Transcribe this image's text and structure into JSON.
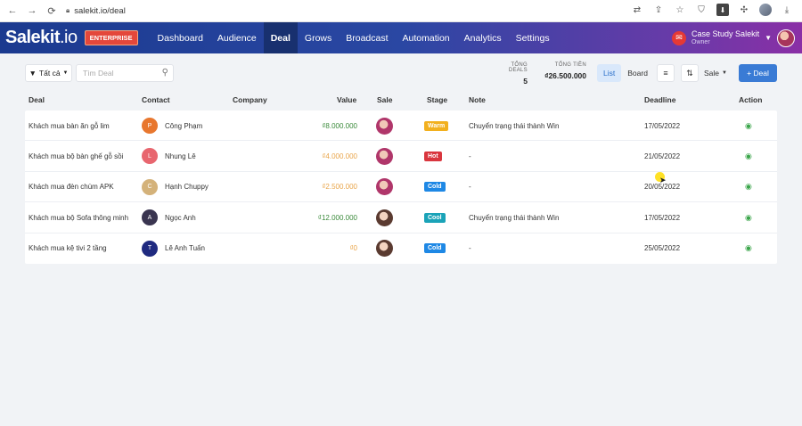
{
  "browser": {
    "url": "salekit.io/deal"
  },
  "app": {
    "logo": "Salekit",
    "logo_suffix": ".io",
    "plan_badge": "ENTERPRISE",
    "menu": [
      "Dashboard",
      "Audience",
      "Deal",
      "Grows",
      "Broadcast",
      "Automation",
      "Analytics",
      "Settings"
    ],
    "active_menu": "Deal",
    "account": {
      "name": "Case Study Salekit",
      "role": "Owner"
    }
  },
  "toolbar": {
    "filter_label": "Tất cả",
    "search_placeholder": "Tìm Deal",
    "total_deals_label": "TỔNG DEALS",
    "total_deals_value": "5",
    "total_value_label": "TỔNG TIỀN",
    "total_value_value": "₫26.500.000",
    "view_list": "List",
    "view_board": "Board",
    "sale_filter": "Sale",
    "add_deal": "+ Deal"
  },
  "table": {
    "columns": [
      "Deal",
      "Contact",
      "Company",
      "Value",
      "Sale",
      "Stage",
      "Note",
      "Deadline",
      "Action"
    ],
    "rows": [
      {
        "deal": "Khách mua bàn ăn gỗ lim",
        "contact": "Công Phạm",
        "initial": "P",
        "avatar_color": "#e8772e",
        "company": "",
        "value": "₫8.000.000",
        "value_color": "#3a8a3a",
        "stage": "Warm",
        "stage_color": "#f2b01e",
        "note": "Chuyển trạng thái thành Win",
        "deadline": "17/05/2022"
      },
      {
        "deal": "Khách mua bộ bàn ghế gỗ sồi",
        "contact": "Nhung Lê",
        "initial": "L",
        "avatar_color": "#e8666f",
        "company": "",
        "value": "₫4.000.000",
        "value_color": "#e9a54a",
        "stage": "Hot",
        "stage_color": "#d9363e",
        "note": "-",
        "deadline": "21/05/2022"
      },
      {
        "deal": "Khách mua đèn chùm APK",
        "contact": "Hạnh Chuppy",
        "initial": "C",
        "avatar_color": "#d4b27a",
        "company": "",
        "value": "₫2.500.000",
        "value_color": "#e9a54a",
        "stage": "Cold",
        "stage_color": "#1e88e5",
        "note": "-",
        "deadline": "20/05/2022"
      },
      {
        "deal": "Khách mua bộ Sofa thông minh",
        "contact": "Ngọc Anh",
        "initial": "A",
        "avatar_color": "#3a3550",
        "company": "",
        "value": "₫12.000.000",
        "value_color": "#3a8a3a",
        "stage": "Cool",
        "stage_color": "#1aa3b8",
        "note": "Chuyển trạng thái thành Win",
        "deadline": "17/05/2022"
      },
      {
        "deal": "Khách mua kệ tivi 2 tầng",
        "contact": "Lê Anh Tuấn",
        "initial": "T",
        "avatar_color": "#1f2a80",
        "company": "",
        "value": "₫0",
        "value_color": "#e9a54a",
        "stage": "Cold",
        "stage_color": "#1e88e5",
        "note": "-",
        "deadline": "25/05/2022"
      }
    ]
  }
}
